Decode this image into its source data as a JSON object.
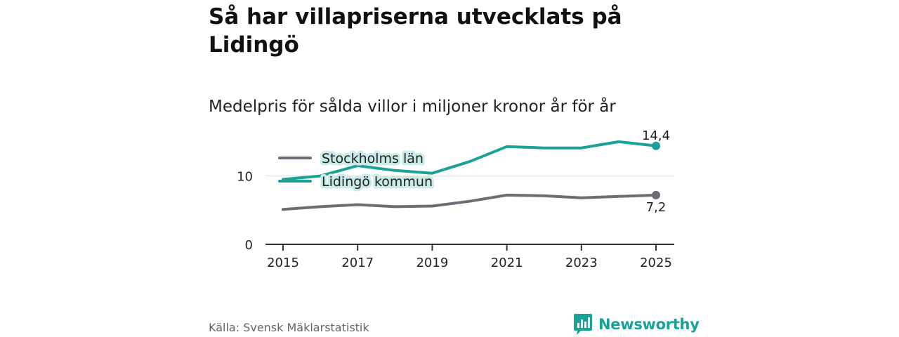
{
  "header": {
    "title": "Så har villapriserna utvecklats på Lidingö",
    "subtitle": "Medelpris för sålda villor i miljoner kronor år för år"
  },
  "chart_data": {
    "type": "line",
    "title": "Så har villapriserna utvecklats på Lidingö",
    "subtitle": "Medelpris för sålda villor i miljoner kronor år för år",
    "xlabel": "",
    "ylabel": "",
    "x": [
      2015,
      2016,
      2017,
      2018,
      2019,
      2020,
      2021,
      2022,
      2023,
      2024,
      2025
    ],
    "x_ticks": [
      "2015",
      "2017",
      "2019",
      "2021",
      "2023",
      "2025"
    ],
    "y_ticks": [
      "0",
      "10"
    ],
    "ylim": [
      0,
      15.2
    ],
    "grid": "horizontal",
    "legend_position": "top-left",
    "series": [
      {
        "name": "Stockholms län",
        "color": "#6e6d75",
        "values": [
          5.1,
          5.5,
          5.8,
          5.5,
          5.6,
          6.3,
          7.2,
          7.1,
          6.8,
          7.0,
          7.2
        ],
        "end_label": "7,2"
      },
      {
        "name": "Lidingö kommun",
        "color": "#1aa198",
        "values": [
          9.5,
          10.0,
          11.5,
          10.8,
          10.4,
          12.1,
          14.3,
          14.1,
          14.1,
          15.0,
          14.4
        ],
        "end_label": "14,4"
      }
    ]
  },
  "footer": {
    "source": "Källa: Svensk Mäklarstatistik",
    "brand": "Newsworthy"
  },
  "colors": {
    "accent": "#1aa198",
    "muted_line": "#6e6d75",
    "legend_halo": "#c9ece9"
  }
}
